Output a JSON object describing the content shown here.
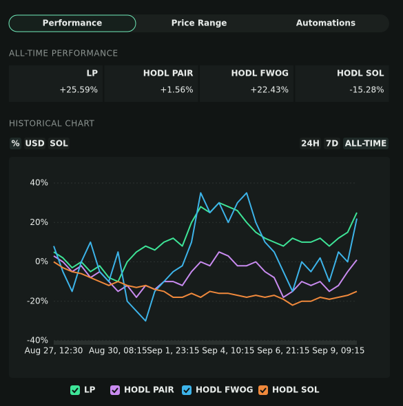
{
  "tabs": [
    "Performance",
    "Price Range",
    "Automations"
  ],
  "performance_title": "ALL-TIME PERFORMANCE",
  "performance": [
    {
      "label": "LP",
      "value": "+25.59%",
      "color": "#4ade80"
    },
    {
      "label": "HODL PAIR",
      "value": "+1.56%",
      "color": "#4ade80"
    },
    {
      "label": "HODL FWOG",
      "value": "+22.43%",
      "color": "#4ade80"
    },
    {
      "label": "HODL SOL",
      "value": "-15.28%",
      "color": "#ef4444"
    }
  ],
  "historical_title": "HISTORICAL CHART",
  "units": [
    "%",
    "USD",
    "SOL"
  ],
  "ranges": [
    "24H",
    "7D",
    "ALL-TIME"
  ],
  "chart_data": {
    "type": "line",
    "categories": [
      "Aug 27, 12:30",
      null,
      null,
      null,
      null,
      null,
      null,
      "Aug 30, 08:15",
      null,
      null,
      null,
      null,
      null,
      "Sep 1, 23:15",
      null,
      null,
      null,
      null,
      null,
      "Sep 4, 10:15",
      null,
      null,
      null,
      null,
      null,
      "Sep 6, 21:15",
      null,
      null,
      null,
      null,
      null,
      "Sep 9, 09:15",
      null,
      null
    ],
    "ylim": [
      -40,
      40
    ],
    "yticks": [
      {
        "value": -40,
        "label": "-40%"
      },
      {
        "value": -20,
        "label": "-20%"
      },
      {
        "value": 0,
        "label": "0%"
      },
      {
        "value": 20,
        "label": "20%"
      },
      {
        "value": 40,
        "label": "40%"
      }
    ],
    "grid": true,
    "series": [
      {
        "name": "LP",
        "color": "#3ee598",
        "values": [
          5,
          2,
          -3,
          0,
          -5,
          -2,
          -8,
          -10,
          0,
          5,
          8,
          6,
          10,
          12,
          8,
          20,
          28,
          25,
          30,
          28,
          26,
          20,
          15,
          12,
          10,
          8,
          12,
          10,
          10,
          12,
          8,
          12,
          15,
          25
        ]
      },
      {
        "name": "HODL PAIR",
        "color": "#c98bf0",
        "values": [
          3,
          0,
          -5,
          -2,
          -8,
          -5,
          -10,
          -15,
          -12,
          -18,
          -12,
          -14,
          -10,
          -10,
          -12,
          -5,
          0,
          -2,
          5,
          3,
          -2,
          -2,
          0,
          -5,
          -8,
          -18,
          -15,
          -10,
          -12,
          -10,
          -15,
          -12,
          -5,
          1
        ]
      },
      {
        "name": "HODL FWOG",
        "color": "#3db4ea",
        "values": [
          8,
          -5,
          -15,
          0,
          10,
          -5,
          -10,
          5,
          -20,
          -25,
          -30,
          -15,
          -10,
          -5,
          -2,
          10,
          35,
          25,
          30,
          20,
          30,
          35,
          20,
          10,
          5,
          -5,
          -15,
          0,
          -5,
          2,
          -10,
          5,
          0,
          22
        ]
      },
      {
        "name": "HODL SOL",
        "color": "#f0893c",
        "values": [
          0,
          -3,
          -5,
          -6,
          -8,
          -10,
          -12,
          -10,
          -12,
          -13,
          -12,
          -14,
          -15,
          -18,
          -18,
          -16,
          -18,
          -15,
          -16,
          -16,
          -17,
          -18,
          -17,
          -18,
          -17,
          -19,
          -22,
          -20,
          -20,
          -18,
          -19,
          -18,
          -17,
          -15
        ]
      }
    ]
  }
}
